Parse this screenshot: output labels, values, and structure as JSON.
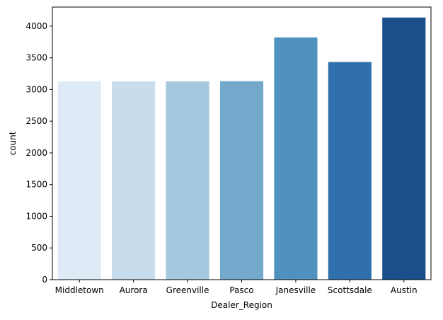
{
  "chart_data": {
    "type": "bar",
    "title": "",
    "xlabel": "Dealer_Region",
    "ylabel": "count",
    "categories": [
      "Middletown",
      "Aurora",
      "Greenville",
      "Pasco",
      "Janesville",
      "Scottsdale",
      "Austin"
    ],
    "values": [
      3128,
      3128,
      3128,
      3131,
      3821,
      3433,
      4135
    ],
    "colors": [
      "#deebf7",
      "#c8dcec",
      "#a4c8dd",
      "#73a9cb",
      "#4f91bf",
      "#2f6fac",
      "#1a4f8a"
    ],
    "ylim": [
      0,
      4300
    ],
    "yticks": [
      "0",
      "500",
      "1000",
      "1500",
      "2000",
      "2500",
      "3000",
      "3500",
      "4000"
    ],
    "grid": false,
    "legend": "none"
  }
}
